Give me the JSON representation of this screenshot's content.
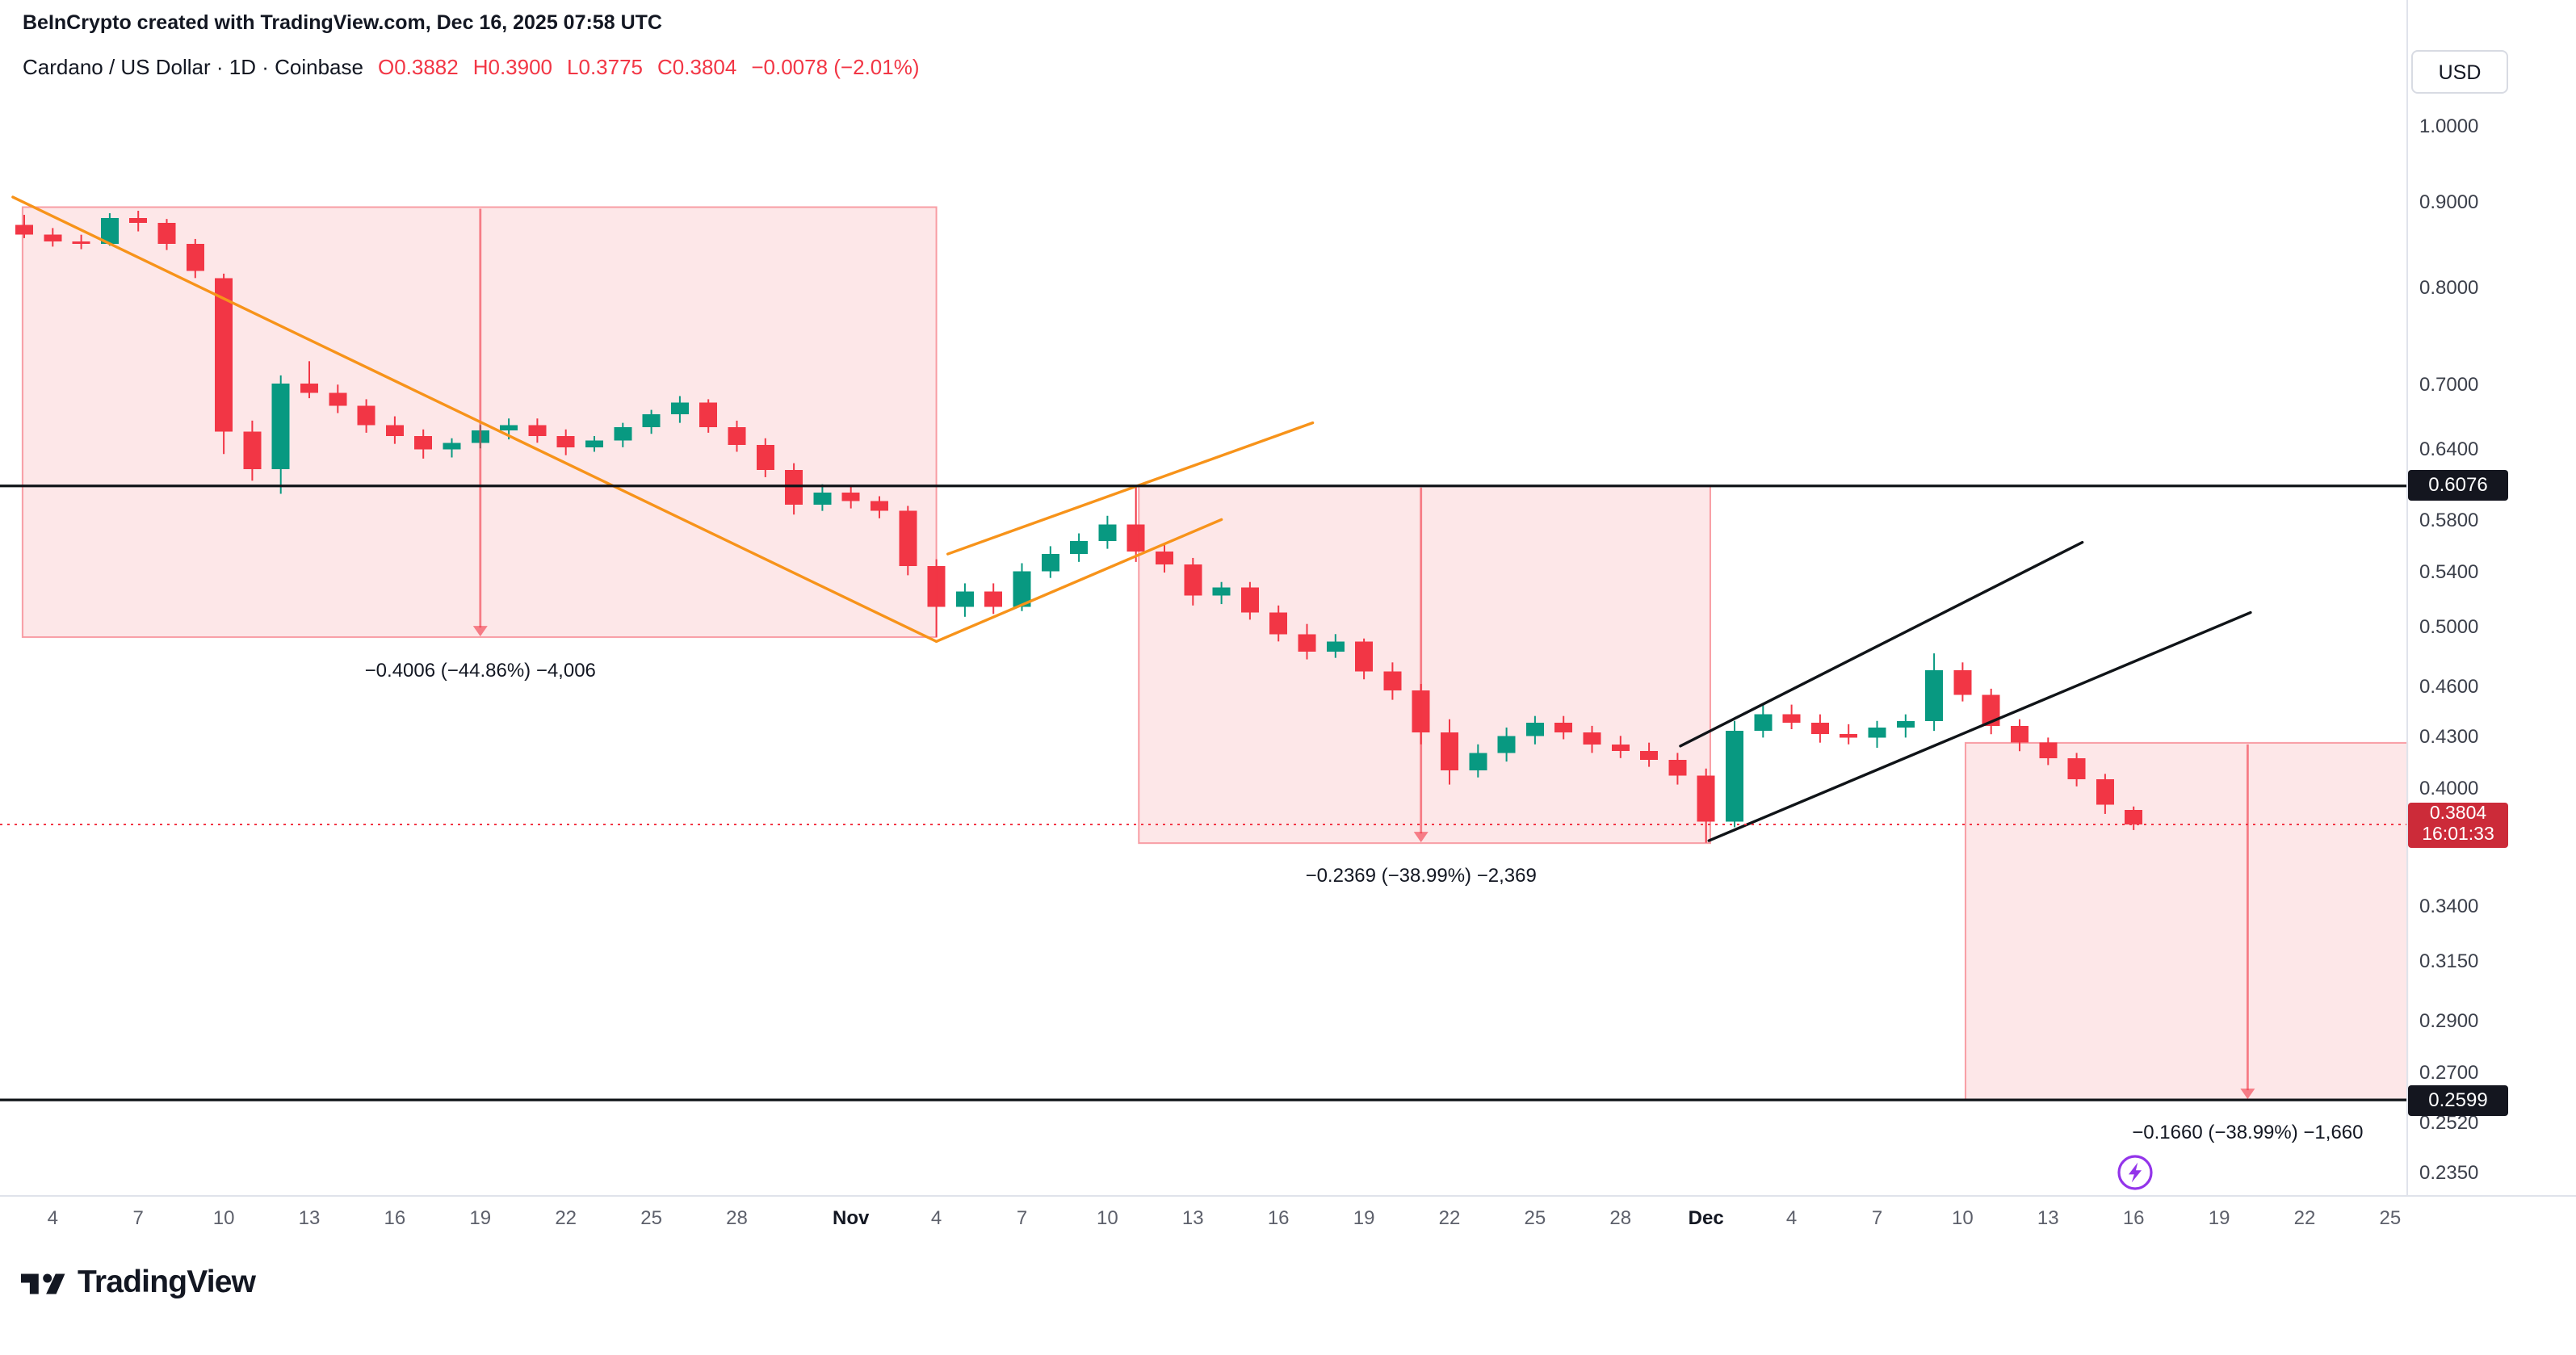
{
  "header": {
    "attribution": "BeInCrypto created with TradingView.com, Dec 16, 2025 07:58 UTC"
  },
  "legend": {
    "title": "Cardano / US Dollar · 1D · Coinbase",
    "open": "O0.3882",
    "high": "H0.3900",
    "low": "L0.3775",
    "close": "C0.3804",
    "change": "−0.0078 (−2.01%)"
  },
  "toolbar": {
    "currency": "USD"
  },
  "footer": {
    "brand": "TradingView"
  },
  "colors": {
    "up": "#089981",
    "down": "#f23645",
    "box_fill": "rgba(242,54,69,0.12)",
    "box_border": "rgba(242,54,69,0.45)",
    "arrow": "rgba(242,54,69,0.6)",
    "orange": "#f7931a",
    "black_line": "#101418",
    "current_line": "#f23645",
    "flash": "#9334ea"
  },
  "chart_data": {
    "type": "candlestick",
    "title": "Cardano / US Dollar",
    "interval": "1D",
    "exchange": "Coinbase",
    "scale": "logarithmic",
    "ylim": [
      0.235,
      1.0
    ],
    "grid": false,
    "current_price": {
      "value": 0.3804,
      "label": "0.3804",
      "countdown": "16:01:33"
    },
    "level_lines": [
      {
        "price": 0.6076,
        "label": "0.6076"
      },
      {
        "price": 0.2599,
        "label": "0.2599"
      }
    ],
    "price_ticks": [
      {
        "label": "1.0000",
        "value": 1.0
      },
      {
        "label": "0.9000",
        "value": 0.9
      },
      {
        "label": "0.8000",
        "value": 0.8
      },
      {
        "label": "0.7000",
        "value": 0.7
      },
      {
        "label": "0.6400",
        "value": 0.64
      },
      {
        "label": "0.5800",
        "value": 0.58
      },
      {
        "label": "0.5400",
        "value": 0.54
      },
      {
        "label": "0.5000",
        "value": 0.5
      },
      {
        "label": "0.4600",
        "value": 0.46
      },
      {
        "label": "0.4300",
        "value": 0.43
      },
      {
        "label": "0.4000",
        "value": 0.4
      },
      {
        "label": "0.3400",
        "value": 0.34
      },
      {
        "label": "0.3150",
        "value": 0.315
      },
      {
        "label": "0.2900",
        "value": 0.29
      },
      {
        "label": "0.2700",
        "value": 0.27
      },
      {
        "label": "0.2520",
        "value": 0.252
      },
      {
        "label": "0.2350",
        "value": 0.235
      }
    ],
    "time_ticks": [
      {
        "label": "4",
        "i": 1
      },
      {
        "label": "7",
        "i": 4
      },
      {
        "label": "10",
        "i": 7
      },
      {
        "label": "13",
        "i": 10
      },
      {
        "label": "16",
        "i": 13
      },
      {
        "label": "19",
        "i": 16
      },
      {
        "label": "22",
        "i": 19
      },
      {
        "label": "25",
        "i": 22
      },
      {
        "label": "28",
        "i": 25
      },
      {
        "label": "Nov",
        "i": 29,
        "major": true
      },
      {
        "label": "4",
        "i": 32
      },
      {
        "label": "7",
        "i": 35
      },
      {
        "label": "10",
        "i": 38
      },
      {
        "label": "13",
        "i": 41
      },
      {
        "label": "16",
        "i": 44
      },
      {
        "label": "19",
        "i": 47
      },
      {
        "label": "22",
        "i": 50
      },
      {
        "label": "25",
        "i": 53
      },
      {
        "label": "28",
        "i": 56
      },
      {
        "label": "Dec",
        "i": 59,
        "major": true
      },
      {
        "label": "4",
        "i": 62
      },
      {
        "label": "7",
        "i": 65
      },
      {
        "label": "10",
        "i": 68
      },
      {
        "label": "13",
        "i": 71
      },
      {
        "label": "16",
        "i": 74
      },
      {
        "label": "19",
        "i": 77
      },
      {
        "label": "22",
        "i": 80
      },
      {
        "label": "25",
        "i": 83
      }
    ],
    "range_boxes": [
      {
        "i1": -0.06,
        "i2": 32.0,
        "top": 0.8935,
        "bottom": 0.4929,
        "arrow_i": 16,
        "label": "−0.4006 (−44.86%) −4,006"
      },
      {
        "i1": 39.1,
        "i2": 59.15,
        "top": 0.6076,
        "bottom": 0.3707,
        "arrow_i": 49,
        "label": "−0.2369 (−38.99%) −2,369"
      },
      {
        "i1": 68.1,
        "i2": 83.6,
        "top": 0.4259,
        "bottom": 0.2599,
        "arrow_i": 78,
        "label": "−0.1660 (−38.99%) −1,660"
      }
    ],
    "trendlines": [
      {
        "color": "orange",
        "from": {
          "i": -0.4,
          "p": 0.906
        },
        "to": {
          "i": 32.0,
          "p": 0.49
        }
      },
      {
        "color": "orange",
        "from": {
          "i": 32.0,
          "p": 0.49
        },
        "to": {
          "i": 42.0,
          "p": 0.58
        }
      },
      {
        "color": "orange",
        "from": {
          "i": 32.4,
          "p": 0.553
        },
        "to": {
          "i": 45.2,
          "p": 0.663
        }
      },
      {
        "color": "black",
        "from": {
          "i": 58.1,
          "p": 0.424
        },
        "to": {
          "i": 72.2,
          "p": 0.562
        }
      },
      {
        "color": "black",
        "from": {
          "i": 59.1,
          "p": 0.372
        },
        "to": {
          "i": 78.1,
          "p": 0.51
        }
      }
    ],
    "candle_columns": [
      "date",
      "open",
      "high",
      "low",
      "close"
    ],
    "candles": [
      [
        "Oct 3",
        0.872,
        0.884,
        0.856,
        0.86
      ],
      [
        "Oct 4",
        0.86,
        0.868,
        0.846,
        0.852
      ],
      [
        "Oct 5",
        0.852,
        0.86,
        0.843,
        0.849
      ],
      [
        "Oct 6",
        0.849,
        0.886,
        0.847,
        0.88
      ],
      [
        "Oct 7",
        0.88,
        0.889,
        0.864,
        0.874
      ],
      [
        "Oct 8",
        0.874,
        0.879,
        0.842,
        0.849
      ],
      [
        "Oct 9",
        0.849,
        0.855,
        0.81,
        0.818
      ],
      [
        "Oct 10",
        0.81,
        0.815,
        0.635,
        0.655
      ],
      [
        "Oct 11",
        0.655,
        0.665,
        0.612,
        0.622
      ],
      [
        "Oct 12",
        0.622,
        0.708,
        0.601,
        0.7
      ],
      [
        "Oct 13",
        0.7,
        0.722,
        0.686,
        0.691
      ],
      [
        "Oct 14",
        0.691,
        0.699,
        0.672,
        0.679
      ],
      [
        "Oct 15",
        0.679,
        0.685,
        0.654,
        0.661
      ],
      [
        "Oct 16",
        0.661,
        0.669,
        0.644,
        0.651
      ],
      [
        "Oct 17",
        0.651,
        0.657,
        0.631,
        0.639
      ],
      [
        "Oct 18",
        0.639,
        0.649,
        0.632,
        0.645
      ],
      [
        "Oct 19",
        0.645,
        0.661,
        0.64,
        0.656
      ],
      [
        "Oct 20",
        0.656,
        0.667,
        0.648,
        0.661
      ],
      [
        "Oct 21",
        0.661,
        0.667,
        0.645,
        0.651
      ],
      [
        "Oct 22",
        0.651,
        0.657,
        0.634,
        0.641
      ],
      [
        "Oct 23",
        0.641,
        0.651,
        0.637,
        0.647
      ],
      [
        "Oct 24",
        0.647,
        0.663,
        0.641,
        0.659
      ],
      [
        "Oct 25",
        0.659,
        0.675,
        0.653,
        0.671
      ],
      [
        "Oct 26",
        0.671,
        0.688,
        0.663,
        0.682
      ],
      [
        "Oct 27",
        0.682,
        0.685,
        0.654,
        0.659
      ],
      [
        "Oct 28",
        0.659,
        0.665,
        0.637,
        0.643
      ],
      [
        "Oct 29",
        0.643,
        0.649,
        0.615,
        0.621
      ],
      [
        "Oct 30",
        0.621,
        0.627,
        0.584,
        0.592
      ],
      [
        "Oct 31",
        0.592,
        0.609,
        0.587,
        0.602
      ],
      [
        "Nov 1",
        0.602,
        0.607,
        0.589,
        0.595
      ],
      [
        "Nov 2",
        0.595,
        0.599,
        0.581,
        0.587
      ],
      [
        "Nov 3",
        0.587,
        0.591,
        0.537,
        0.544
      ],
      [
        "Nov 4",
        0.544,
        0.549,
        0.493,
        0.514
      ],
      [
        "Nov 5",
        0.514,
        0.531,
        0.507,
        0.525
      ],
      [
        "Nov 6",
        0.525,
        0.531,
        0.509,
        0.514
      ],
      [
        "Nov 7",
        0.514,
        0.546,
        0.511,
        0.54
      ],
      [
        "Nov 8",
        0.54,
        0.559,
        0.535,
        0.553
      ],
      [
        "Nov 9",
        0.553,
        0.569,
        0.547,
        0.563
      ],
      [
        "Nov 10",
        0.563,
        0.583,
        0.557,
        0.576
      ],
      [
        "Nov 11",
        0.576,
        0.607,
        0.547,
        0.555
      ],
      [
        "Nov 12",
        0.555,
        0.56,
        0.539,
        0.545
      ],
      [
        "Nov 13",
        0.545,
        0.55,
        0.515,
        0.522
      ],
      [
        "Nov 14",
        0.522,
        0.532,
        0.516,
        0.528
      ],
      [
        "Nov 15",
        0.528,
        0.532,
        0.505,
        0.51
      ],
      [
        "Nov 16",
        0.51,
        0.515,
        0.49,
        0.495
      ],
      [
        "Nov 17",
        0.495,
        0.502,
        0.478,
        0.483
      ],
      [
        "Nov 18",
        0.483,
        0.495,
        0.479,
        0.49
      ],
      [
        "Nov 19",
        0.49,
        0.492,
        0.465,
        0.47
      ],
      [
        "Nov 20",
        0.47,
        0.476,
        0.452,
        0.458
      ],
      [
        "Nov 21",
        0.458,
        0.462,
        0.425,
        0.432
      ],
      [
        "Nov 22",
        0.432,
        0.44,
        0.402,
        0.41
      ],
      [
        "Nov 23",
        0.41,
        0.425,
        0.406,
        0.42
      ],
      [
        "Nov 24",
        0.42,
        0.435,
        0.415,
        0.43
      ],
      [
        "Nov 25",
        0.43,
        0.442,
        0.425,
        0.438
      ],
      [
        "Nov 26",
        0.438,
        0.442,
        0.428,
        0.432
      ],
      [
        "Nov 27",
        0.432,
        0.436,
        0.42,
        0.425
      ],
      [
        "Nov 28",
        0.425,
        0.43,
        0.417,
        0.421
      ],
      [
        "Nov 29",
        0.421,
        0.426,
        0.412,
        0.416
      ],
      [
        "Nov 30",
        0.416,
        0.42,
        0.402,
        0.407
      ],
      [
        "Dec 1",
        0.407,
        0.411,
        0.371,
        0.382
      ],
      [
        "Dec 2",
        0.382,
        0.439,
        0.379,
        0.433
      ],
      [
        "Dec 3",
        0.433,
        0.449,
        0.429,
        0.443
      ],
      [
        "Dec 4",
        0.443,
        0.449,
        0.434,
        0.438
      ],
      [
        "Dec 5",
        0.438,
        0.443,
        0.426,
        0.431
      ],
      [
        "Dec 6",
        0.431,
        0.437,
        0.425,
        0.429
      ],
      [
        "Dec 7",
        0.429,
        0.439,
        0.423,
        0.435
      ],
      [
        "Dec 8",
        0.435,
        0.443,
        0.429,
        0.439
      ],
      [
        "Dec 9",
        0.439,
        0.482,
        0.433,
        0.471
      ],
      [
        "Dec 10",
        0.471,
        0.476,
        0.451,
        0.455
      ],
      [
        "Dec 11",
        0.455,
        0.459,
        0.431,
        0.436
      ],
      [
        "Dec 12",
        0.436,
        0.44,
        0.421,
        0.426
      ],
      [
        "Dec 13",
        0.426,
        0.429,
        0.413,
        0.417
      ],
      [
        "Dec 14",
        0.417,
        0.42,
        0.401,
        0.405
      ],
      [
        "Dec 15",
        0.405,
        0.408,
        0.386,
        0.391
      ],
      [
        "Dec 16",
        0.3882,
        0.39,
        0.3775,
        0.3804
      ]
    ]
  }
}
